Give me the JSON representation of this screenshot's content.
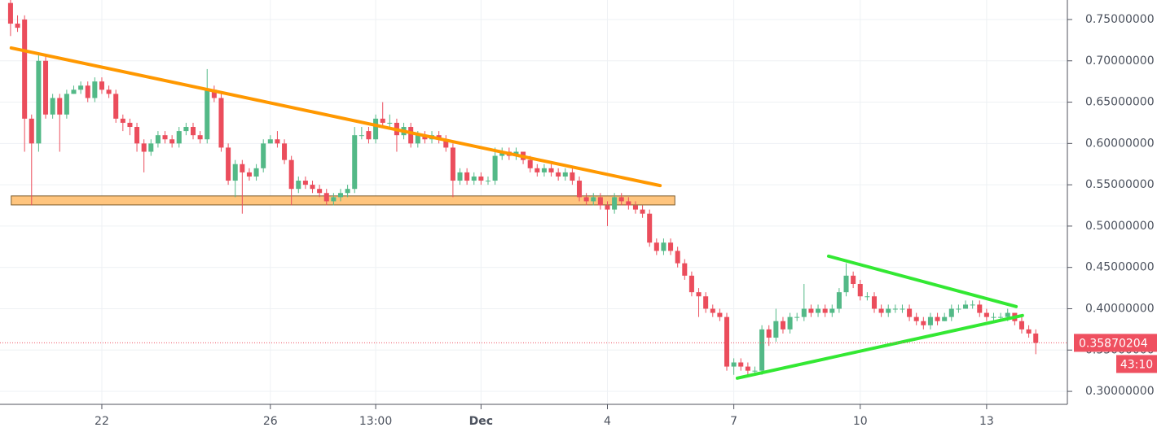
{
  "chart_data": {
    "type": "candlestick",
    "up_color": "#53b987",
    "down_color": "#eb4d5c",
    "grid": true,
    "xlim": [
      -1.5,
      150.5
    ],
    "xticks": [
      {
        "value": 13,
        "label": "22"
      },
      {
        "value": 37,
        "label": "26"
      },
      {
        "value": 52,
        "label": "13:00"
      },
      {
        "value": 67,
        "label": "Dec"
      },
      {
        "value": 85,
        "label": "4"
      },
      {
        "value": 103,
        "label": "7"
      },
      {
        "value": 121,
        "label": "10"
      },
      {
        "value": 139,
        "label": "13"
      }
    ],
    "ylim": [
      0.2843,
      0.7736
    ],
    "yticks": [
      {
        "value": 0.3,
        "label": "0.30000000"
      },
      {
        "value": 0.35,
        "label": "0.35000000"
      },
      {
        "value": 0.4,
        "label": "0.40000000"
      },
      {
        "value": 0.45,
        "label": "0.45000000"
      },
      {
        "value": 0.5,
        "label": "0.50000000"
      },
      {
        "value": 0.55,
        "label": "0.55000000"
      },
      {
        "value": 0.6,
        "label": "0.60000000"
      },
      {
        "value": 0.65,
        "label": "0.65000000"
      },
      {
        "value": 0.7,
        "label": "0.70000000"
      },
      {
        "value": 0.75,
        "label": "0.75000000"
      }
    ],
    "open": [
      0.77,
      0.745,
      0.75,
      0.63,
      0.6,
      0.7,
      0.635,
      0.655,
      0.635,
      0.66,
      0.665,
      0.67,
      0.655,
      0.675,
      0.665,
      0.66,
      0.63,
      0.625,
      0.62,
      0.6,
      0.59,
      0.6,
      0.61,
      0.605,
      0.6,
      0.615,
      0.62,
      0.61,
      0.605,
      0.665,
      0.655,
      0.595,
      0.555,
      0.575,
      0.565,
      0.56,
      0.57,
      0.6,
      0.605,
      0.6,
      0.58,
      0.545,
      0.555,
      0.55,
      0.545,
      0.54,
      0.53,
      0.535,
      0.54,
      0.545,
      0.61,
      0.615,
      0.605,
      0.63,
      0.625,
      0.625,
      0.61,
      0.62,
      0.6,
      0.61,
      0.605,
      0.61,
      0.605,
      0.595,
      0.555,
      0.565,
      0.555,
      0.56,
      0.555,
      0.555,
      0.585,
      0.59,
      0.585,
      0.59,
      0.58,
      0.57,
      0.565,
      0.57,
      0.565,
      0.56,
      0.565,
      0.555,
      0.535,
      0.53,
      0.535,
      0.525,
      0.52,
      0.535,
      0.53,
      0.525,
      0.52,
      0.515,
      0.48,
      0.47,
      0.48,
      0.47,
      0.455,
      0.44,
      0.42,
      0.415,
      0.4,
      0.395,
      0.39,
      0.33,
      0.335,
      0.33,
      0.325,
      0.325,
      0.375,
      0.365,
      0.385,
      0.375,
      0.39,
      0.39,
      0.4,
      0.395,
      0.4,
      0.395,
      0.4,
      0.42,
      0.44,
      0.43,
      0.415,
      0.415,
      0.4,
      0.395,
      0.4,
      0.4,
      0.4,
      0.39,
      0.385,
      0.38,
      0.39,
      0.385,
      0.39,
      0.4,
      0.4,
      0.405,
      0.405,
      0.395,
      0.39,
      0.39,
      0.39,
      0.395,
      0.385,
      0.375,
      0.37
    ],
    "high": [
      0.775,
      0.755,
      0.755,
      0.635,
      0.71,
      0.705,
      0.66,
      0.66,
      0.665,
      0.67,
      0.675,
      0.675,
      0.68,
      0.68,
      0.67,
      0.665,
      0.635,
      0.63,
      0.625,
      0.605,
      0.605,
      0.615,
      0.615,
      0.61,
      0.62,
      0.625,
      0.625,
      0.615,
      0.69,
      0.67,
      0.66,
      0.6,
      0.58,
      0.58,
      0.57,
      0.575,
      0.605,
      0.61,
      0.615,
      0.605,
      0.585,
      0.56,
      0.56,
      0.555,
      0.55,
      0.545,
      0.54,
      0.545,
      0.55,
      0.62,
      0.62,
      0.62,
      0.635,
      0.65,
      0.635,
      0.63,
      0.625,
      0.625,
      0.615,
      0.615,
      0.615,
      0.615,
      0.61,
      0.6,
      0.57,
      0.57,
      0.565,
      0.565,
      0.56,
      0.595,
      0.595,
      0.595,
      0.595,
      0.59,
      0.585,
      0.575,
      0.575,
      0.575,
      0.57,
      0.57,
      0.57,
      0.56,
      0.54,
      0.54,
      0.54,
      0.53,
      0.54,
      0.54,
      0.535,
      0.53,
      0.525,
      0.52,
      0.485,
      0.485,
      0.485,
      0.475,
      0.46,
      0.445,
      0.425,
      0.42,
      0.405,
      0.4,
      0.395,
      0.34,
      0.34,
      0.335,
      0.33,
      0.38,
      0.38,
      0.4,
      0.39,
      0.395,
      0.395,
      0.43,
      0.405,
      0.405,
      0.405,
      0.405,
      0.425,
      0.455,
      0.445,
      0.435,
      0.42,
      0.42,
      0.405,
      0.405,
      0.405,
      0.405,
      0.405,
      0.395,
      0.39,
      0.395,
      0.395,
      0.395,
      0.405,
      0.405,
      0.41,
      0.41,
      0.41,
      0.4,
      0.395,
      0.395,
      0.4,
      0.395,
      0.39,
      0.38,
      0.375
    ],
    "low": [
      0.73,
      0.735,
      0.59,
      0.525,
      0.59,
      0.63,
      0.63,
      0.59,
      0.63,
      0.66,
      0.66,
      0.65,
      0.65,
      0.66,
      0.655,
      0.625,
      0.615,
      0.61,
      0.59,
      0.565,
      0.585,
      0.595,
      0.6,
      0.595,
      0.595,
      0.61,
      0.605,
      0.6,
      0.6,
      0.65,
      0.59,
      0.55,
      0.535,
      0.515,
      0.555,
      0.555,
      0.565,
      0.6,
      0.595,
      0.575,
      0.525,
      0.54,
      0.545,
      0.54,
      0.535,
      0.525,
      0.525,
      0.53,
      0.535,
      0.54,
      0.605,
      0.6,
      0.6,
      0.62,
      0.62,
      0.59,
      0.605,
      0.595,
      0.595,
      0.6,
      0.6,
      0.6,
      0.59,
      0.535,
      0.55,
      0.55,
      0.55,
      0.55,
      0.55,
      0.55,
      0.58,
      0.58,
      0.58,
      0.575,
      0.565,
      0.56,
      0.56,
      0.56,
      0.555,
      0.555,
      0.55,
      0.53,
      0.525,
      0.525,
      0.52,
      0.5,
      0.515,
      0.525,
      0.52,
      0.515,
      0.51,
      0.475,
      0.465,
      0.465,
      0.465,
      0.45,
      0.435,
      0.415,
      0.39,
      0.395,
      0.39,
      0.385,
      0.325,
      0.32,
      0.325,
      0.32,
      0.32,
      0.32,
      0.355,
      0.36,
      0.37,
      0.37,
      0.385,
      0.385,
      0.39,
      0.39,
      0.39,
      0.39,
      0.395,
      0.415,
      0.425,
      0.41,
      0.41,
      0.395,
      0.39,
      0.39,
      0.395,
      0.395,
      0.385,
      0.38,
      0.375,
      0.375,
      0.38,
      0.385,
      0.385,
      0.395,
      0.4,
      0.4,
      0.39,
      0.385,
      0.385,
      0.385,
      0.385,
      0.38,
      0.37,
      0.365,
      0.345
    ],
    "close": [
      0.745,
      0.74,
      0.63,
      0.6,
      0.7,
      0.635,
      0.655,
      0.635,
      0.66,
      0.665,
      0.67,
      0.655,
      0.675,
      0.665,
      0.66,
      0.63,
      0.625,
      0.62,
      0.6,
      0.59,
      0.6,
      0.61,
      0.605,
      0.6,
      0.615,
      0.62,
      0.61,
      0.605,
      0.665,
      0.655,
      0.595,
      0.555,
      0.575,
      0.565,
      0.56,
      0.57,
      0.6,
      0.605,
      0.6,
      0.58,
      0.545,
      0.555,
      0.55,
      0.545,
      0.54,
      0.53,
      0.535,
      0.54,
      0.545,
      0.61,
      0.61,
      0.605,
      0.63,
      0.625,
      0.625,
      0.61,
      0.62,
      0.6,
      0.61,
      0.605,
      0.61,
      0.605,
      0.595,
      0.555,
      0.565,
      0.555,
      0.56,
      0.555,
      0.555,
      0.585,
      0.59,
      0.585,
      0.59,
      0.58,
      0.57,
      0.565,
      0.57,
      0.565,
      0.56,
      0.565,
      0.555,
      0.535,
      0.53,
      0.535,
      0.525,
      0.52,
      0.535,
      0.53,
      0.525,
      0.52,
      0.515,
      0.48,
      0.47,
      0.48,
      0.47,
      0.455,
      0.44,
      0.42,
      0.415,
      0.4,
      0.395,
      0.39,
      0.33,
      0.335,
      0.33,
      0.325,
      0.325,
      0.375,
      0.365,
      0.385,
      0.375,
      0.39,
      0.39,
      0.4,
      0.395,
      0.4,
      0.395,
      0.4,
      0.42,
      0.44,
      0.43,
      0.415,
      0.415,
      0.4,
      0.395,
      0.4,
      0.4,
      0.4,
      0.39,
      0.385,
      0.38,
      0.39,
      0.385,
      0.39,
      0.4,
      0.4,
      0.405,
      0.405,
      0.395,
      0.39,
      0.39,
      0.39,
      0.395,
      0.385,
      0.375,
      0.37,
      0.35870204
    ],
    "last_price": 0.35870204,
    "last_color": "#ef5060",
    "countdown": "43:10",
    "trendlines": [
      {
        "color": "#ff9800",
        "points": [
          [
            0.1,
            0.7156
          ],
          [
            92.5,
            0.549
          ]
        ]
      },
      {
        "color": "#33e833",
        "points": [
          [
            116.5,
            0.4636
          ],
          [
            143.2,
            0.4026
          ]
        ]
      },
      {
        "color": "#33e833",
        "points": [
          [
            103.5,
            0.316
          ],
          [
            144.1,
            0.3918
          ]
        ]
      }
    ],
    "zone": {
      "color": "#ffc57e",
      "x": [
        0.1,
        94.6
      ],
      "y": [
        0.5256,
        0.5365
      ]
    }
  }
}
